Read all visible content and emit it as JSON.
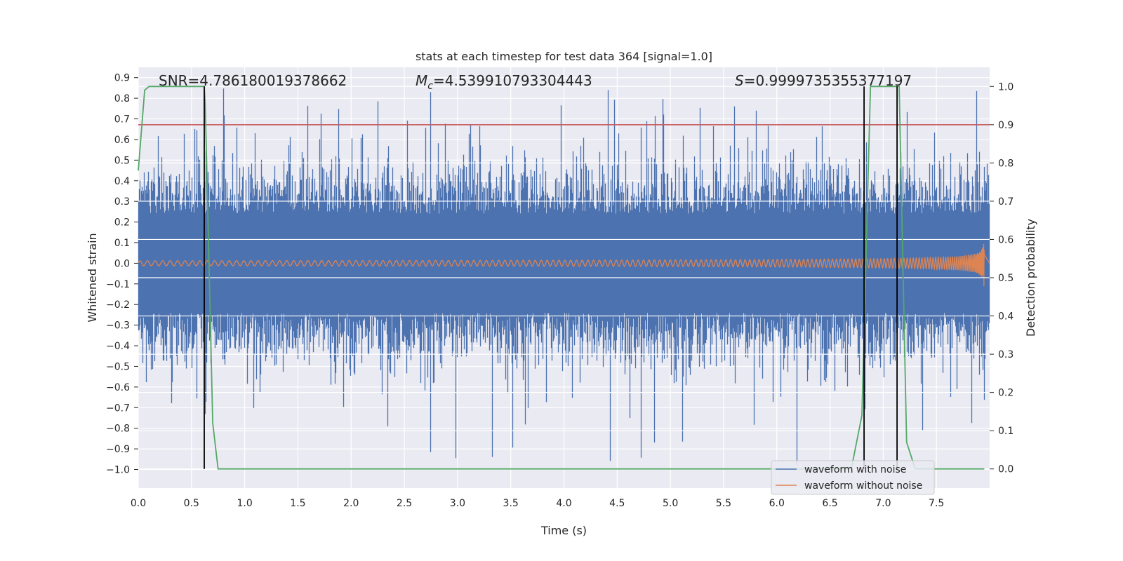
{
  "chart_data": {
    "type": "line",
    "title": "stats at each timestep for test data 364 [signal=1.0]",
    "xlabel": "Time (s)",
    "ylabel": "Whitened strain",
    "y2label": "Detection probability",
    "xlim": [
      0.0,
      8.0
    ],
    "ylim": [
      -1.09,
      0.95
    ],
    "y2lim": [
      -0.05,
      1.05
    ],
    "xticks": [
      0.0,
      0.5,
      1.0,
      1.5,
      2.0,
      2.5,
      3.0,
      3.5,
      4.0,
      4.5,
      5.0,
      5.5,
      6.0,
      6.5,
      7.0,
      7.5
    ],
    "xtick_labels": [
      "0.0",
      "0.5",
      "1.0",
      "1.5",
      "2.0",
      "2.5",
      "3.0",
      "3.5",
      "4.0",
      "4.5",
      "5.0",
      "5.5",
      "6.0",
      "6.5",
      "7.0",
      "7.5"
    ],
    "yticks": [
      0.9,
      0.8,
      0.7,
      0.6,
      0.5,
      0.4,
      0.3,
      0.2,
      0.1,
      0.0,
      -0.1,
      -0.2,
      -0.3,
      -0.4,
      -0.5,
      -0.6,
      -0.7,
      -0.8,
      -0.9,
      -1.0
    ],
    "ytick_labels": [
      "0.9",
      "0.8",
      "0.7",
      "0.6",
      "0.5",
      "0.4",
      "0.3",
      "0.2",
      "0.1",
      "0.0",
      "−0.1",
      "−0.2",
      "−0.3",
      "−0.4",
      "−0.5",
      "−0.6",
      "−0.7",
      "−0.8",
      "−0.9",
      "−1.0"
    ],
    "y2ticks": [
      1.0,
      0.9,
      0.8,
      0.7,
      0.6,
      0.5,
      0.4,
      0.3,
      0.2,
      0.1,
      0.0
    ],
    "y2tick_labels": [
      "1.0",
      "0.9",
      "0.8",
      "0.7",
      "0.6",
      "0.5",
      "0.4",
      "0.3",
      "0.2",
      "0.1",
      "0.0"
    ],
    "annotations": {
      "snr": "SNR=4.786180019378662",
      "mc_symbol": "M",
      "mc_sub": "c",
      "mc_value": "=4.539910793304443",
      "s_symbol": "S",
      "s_value": "=0.9999735355377197"
    },
    "threshold": {
      "value": 0.9,
      "axis": "y2",
      "color": "#c44e52"
    },
    "detection_lines_x": [
      0.62,
      6.82,
      7.13
    ],
    "series": [
      {
        "name": "waveform with noise",
        "color": "#4c72b0",
        "kind": "noise",
        "typical_amplitude": 0.5,
        "peak_max": 0.85,
        "peak_min": -1.0
      },
      {
        "name": "waveform without noise",
        "color": "#dd8452",
        "kind": "chirp",
        "start_amplitude": 0.012,
        "end_amplitude": 0.14,
        "merger_time": 7.95
      },
      {
        "name": "detection probability",
        "color": "#55a868",
        "axis": "y2",
        "x": [
          0.0,
          0.06,
          0.1,
          0.62,
          0.63,
          0.7,
          0.75,
          6.7,
          6.8,
          6.88,
          7.15,
          7.22,
          7.3,
          7.7,
          7.95
        ],
        "y": [
          0.78,
          0.99,
          1.0,
          1.0,
          0.95,
          0.12,
          0.0,
          0.0,
          0.14,
          1.0,
          1.0,
          0.07,
          0.0,
          0.0,
          0.0
        ]
      }
    ],
    "legend": {
      "loc": "lower-right",
      "entries": [
        "waveform with noise",
        "waveform without noise"
      ]
    },
    "grid": true
  }
}
